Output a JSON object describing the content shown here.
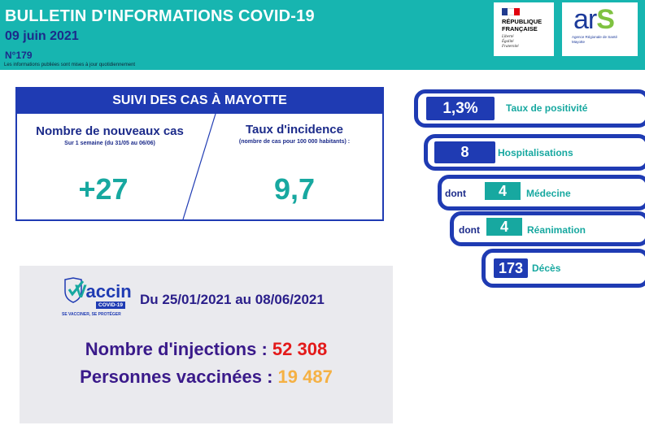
{
  "header": {
    "title": "BULLETIN D'INFORMATIONS COVID-19",
    "date": "09 juin 2021",
    "number": "N°179",
    "note": "Les informations publiées sont mises à jour quotidiennement"
  },
  "logos": {
    "republique": {
      "name_line1": "RÉPUBLIQUE",
      "name_line2": "FRANÇAISE",
      "motto1": "Liberté",
      "motto2": "Égalité",
      "motto3": "Fraternité"
    },
    "ars": {
      "word_start": "ar",
      "word_end": "S",
      "sub1": "Agence Régionale de Santé",
      "sub2": "Mayotte"
    }
  },
  "suivi": {
    "title": "SUIVI DES CAS À MAYOTTE",
    "new_cases": {
      "label": "Nombre de nouveaux cas",
      "sub": "Sur 1 semaine (du 31/05 au 06/06)",
      "value": "+27"
    },
    "incidence": {
      "label": "Taux d'incidence",
      "sub": "(nombre de cas pour 100 000 habitants) :",
      "value": "9,7"
    }
  },
  "stats": {
    "positivity": {
      "value": "1,3%",
      "label": "Taux de positivité"
    },
    "hospital": {
      "value": "8",
      "label": "Hospitalisations"
    },
    "medicine": {
      "prefix": "dont",
      "value": "4",
      "label": "Médecine"
    },
    "reanimation": {
      "prefix": "dont",
      "value": "4",
      "label": "Réanimation"
    },
    "deaths": {
      "value": "173",
      "label": "Décès"
    }
  },
  "vaccine": {
    "logo_word": "accin",
    "logo_v": "V",
    "logo_badge": "COVID-19",
    "logo_slogan": "SE VACCINER, SE PROTÉGER",
    "dates": "Du 25/01/2021 au 08/06/2021",
    "injections_label": "Nombre d'injections :",
    "injections_value": "52 308",
    "people_label": "Personnes vaccinées :",
    "people_value": "19 487"
  },
  "colors": {
    "teal": "#17b5b0",
    "navy": "#1f3bb3",
    "red": "#e31a1a",
    "orange": "#f5b144"
  }
}
